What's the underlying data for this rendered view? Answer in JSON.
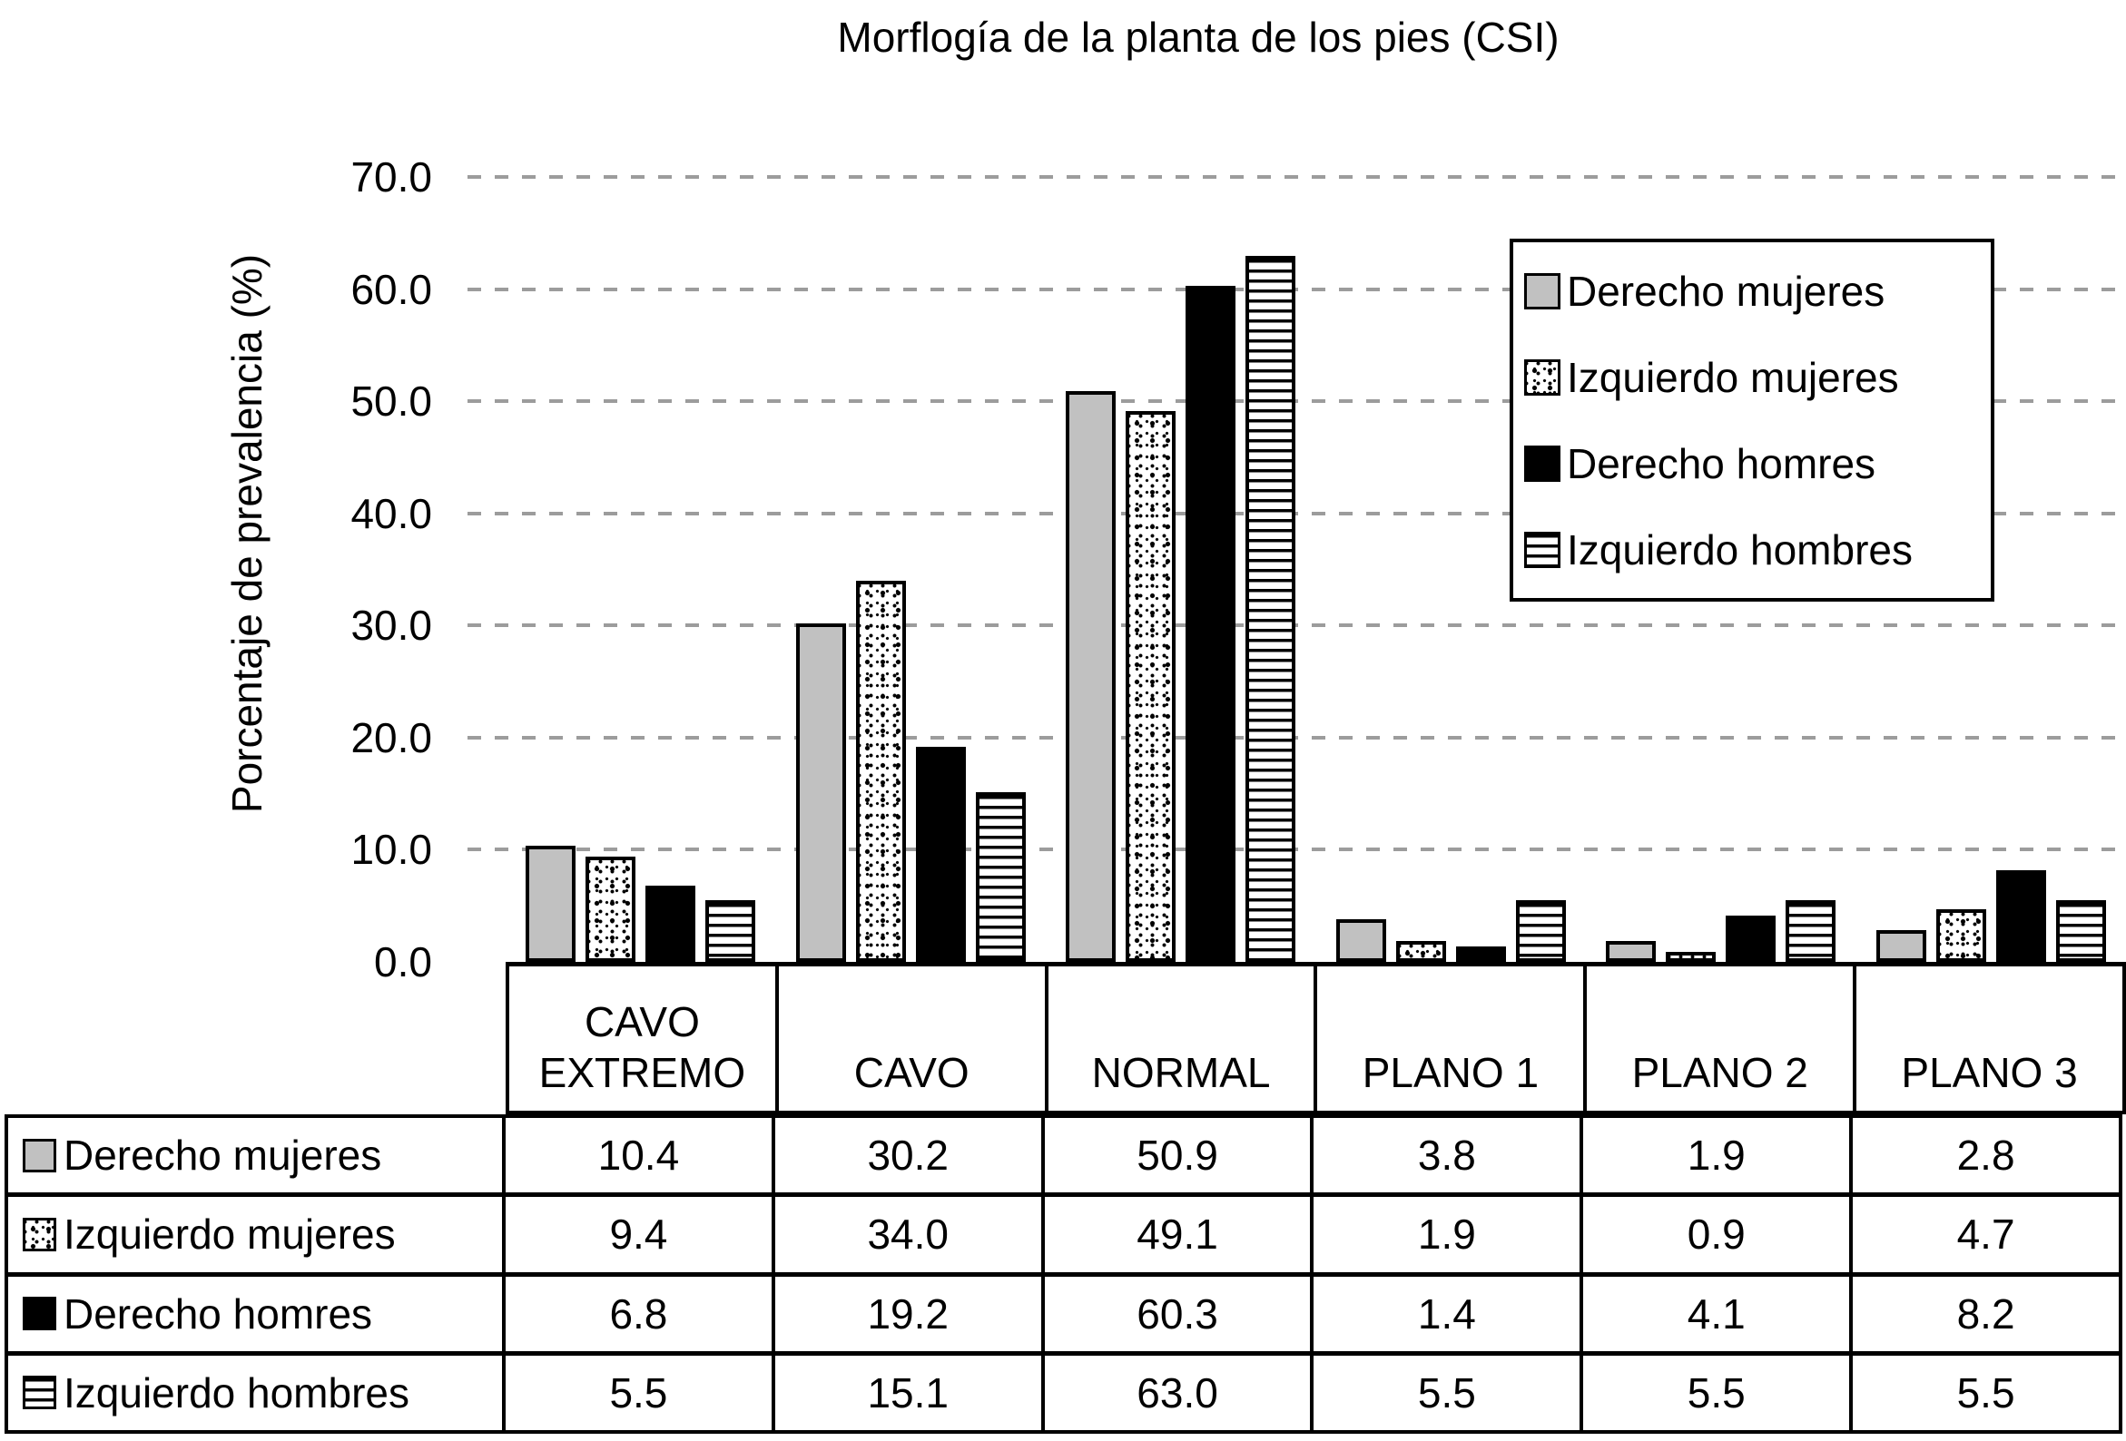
{
  "title": "Morflogía de la planta de los pies (CSI)",
  "y_axis_title": "Porcentaje de prevalencia (%)",
  "y_ticks": [
    "70.0",
    "60.0",
    "50.0",
    "40.0",
    "30.0",
    "20.0",
    "10.0",
    "0.0"
  ],
  "legend_items": [
    "Derecho mujeres",
    "Izquierdo mujeres",
    "Derecho homres",
    "Izquierdo hombres"
  ],
  "colors": {
    "bar_gray": "#c1c1c1",
    "bar_black": "#000000",
    "gridline_gray": "#9c9c9c",
    "border_black": "#000000"
  },
  "chart_data": {
    "type": "bar",
    "title": "Morflogía de la planta de los pies (CSI)",
    "xlabel": "",
    "ylabel": "Porcentaje de prevalencia (%)",
    "ylim": [
      0,
      70
    ],
    "ytick_step": 10,
    "grid": "horizontal dashed gray lines",
    "legend_position": "inside upper right, boxed",
    "categories": [
      "CAVO EXTREMO",
      "CAVO",
      "NORMAL",
      "PLANO 1",
      "PLANO 2",
      "PLANO 3"
    ],
    "series": [
      {
        "name": "Derecho mujeres",
        "pattern": "gray",
        "values": [
          10.4,
          30.2,
          50.9,
          3.8,
          1.9,
          2.8
        ]
      },
      {
        "name": "Izquierdo mujeres",
        "pattern": "speckle",
        "values": [
          9.4,
          34.0,
          49.1,
          1.9,
          0.9,
          4.7
        ]
      },
      {
        "name": "Derecho homres",
        "pattern": "black",
        "values": [
          6.8,
          19.2,
          60.3,
          1.4,
          4.1,
          8.2
        ]
      },
      {
        "name": "Izquierdo hombres",
        "pattern": "hlines",
        "values": [
          5.5,
          15.1,
          63.0,
          5.5,
          5.5,
          5.5
        ]
      }
    ],
    "data_table_below_chart": true
  }
}
